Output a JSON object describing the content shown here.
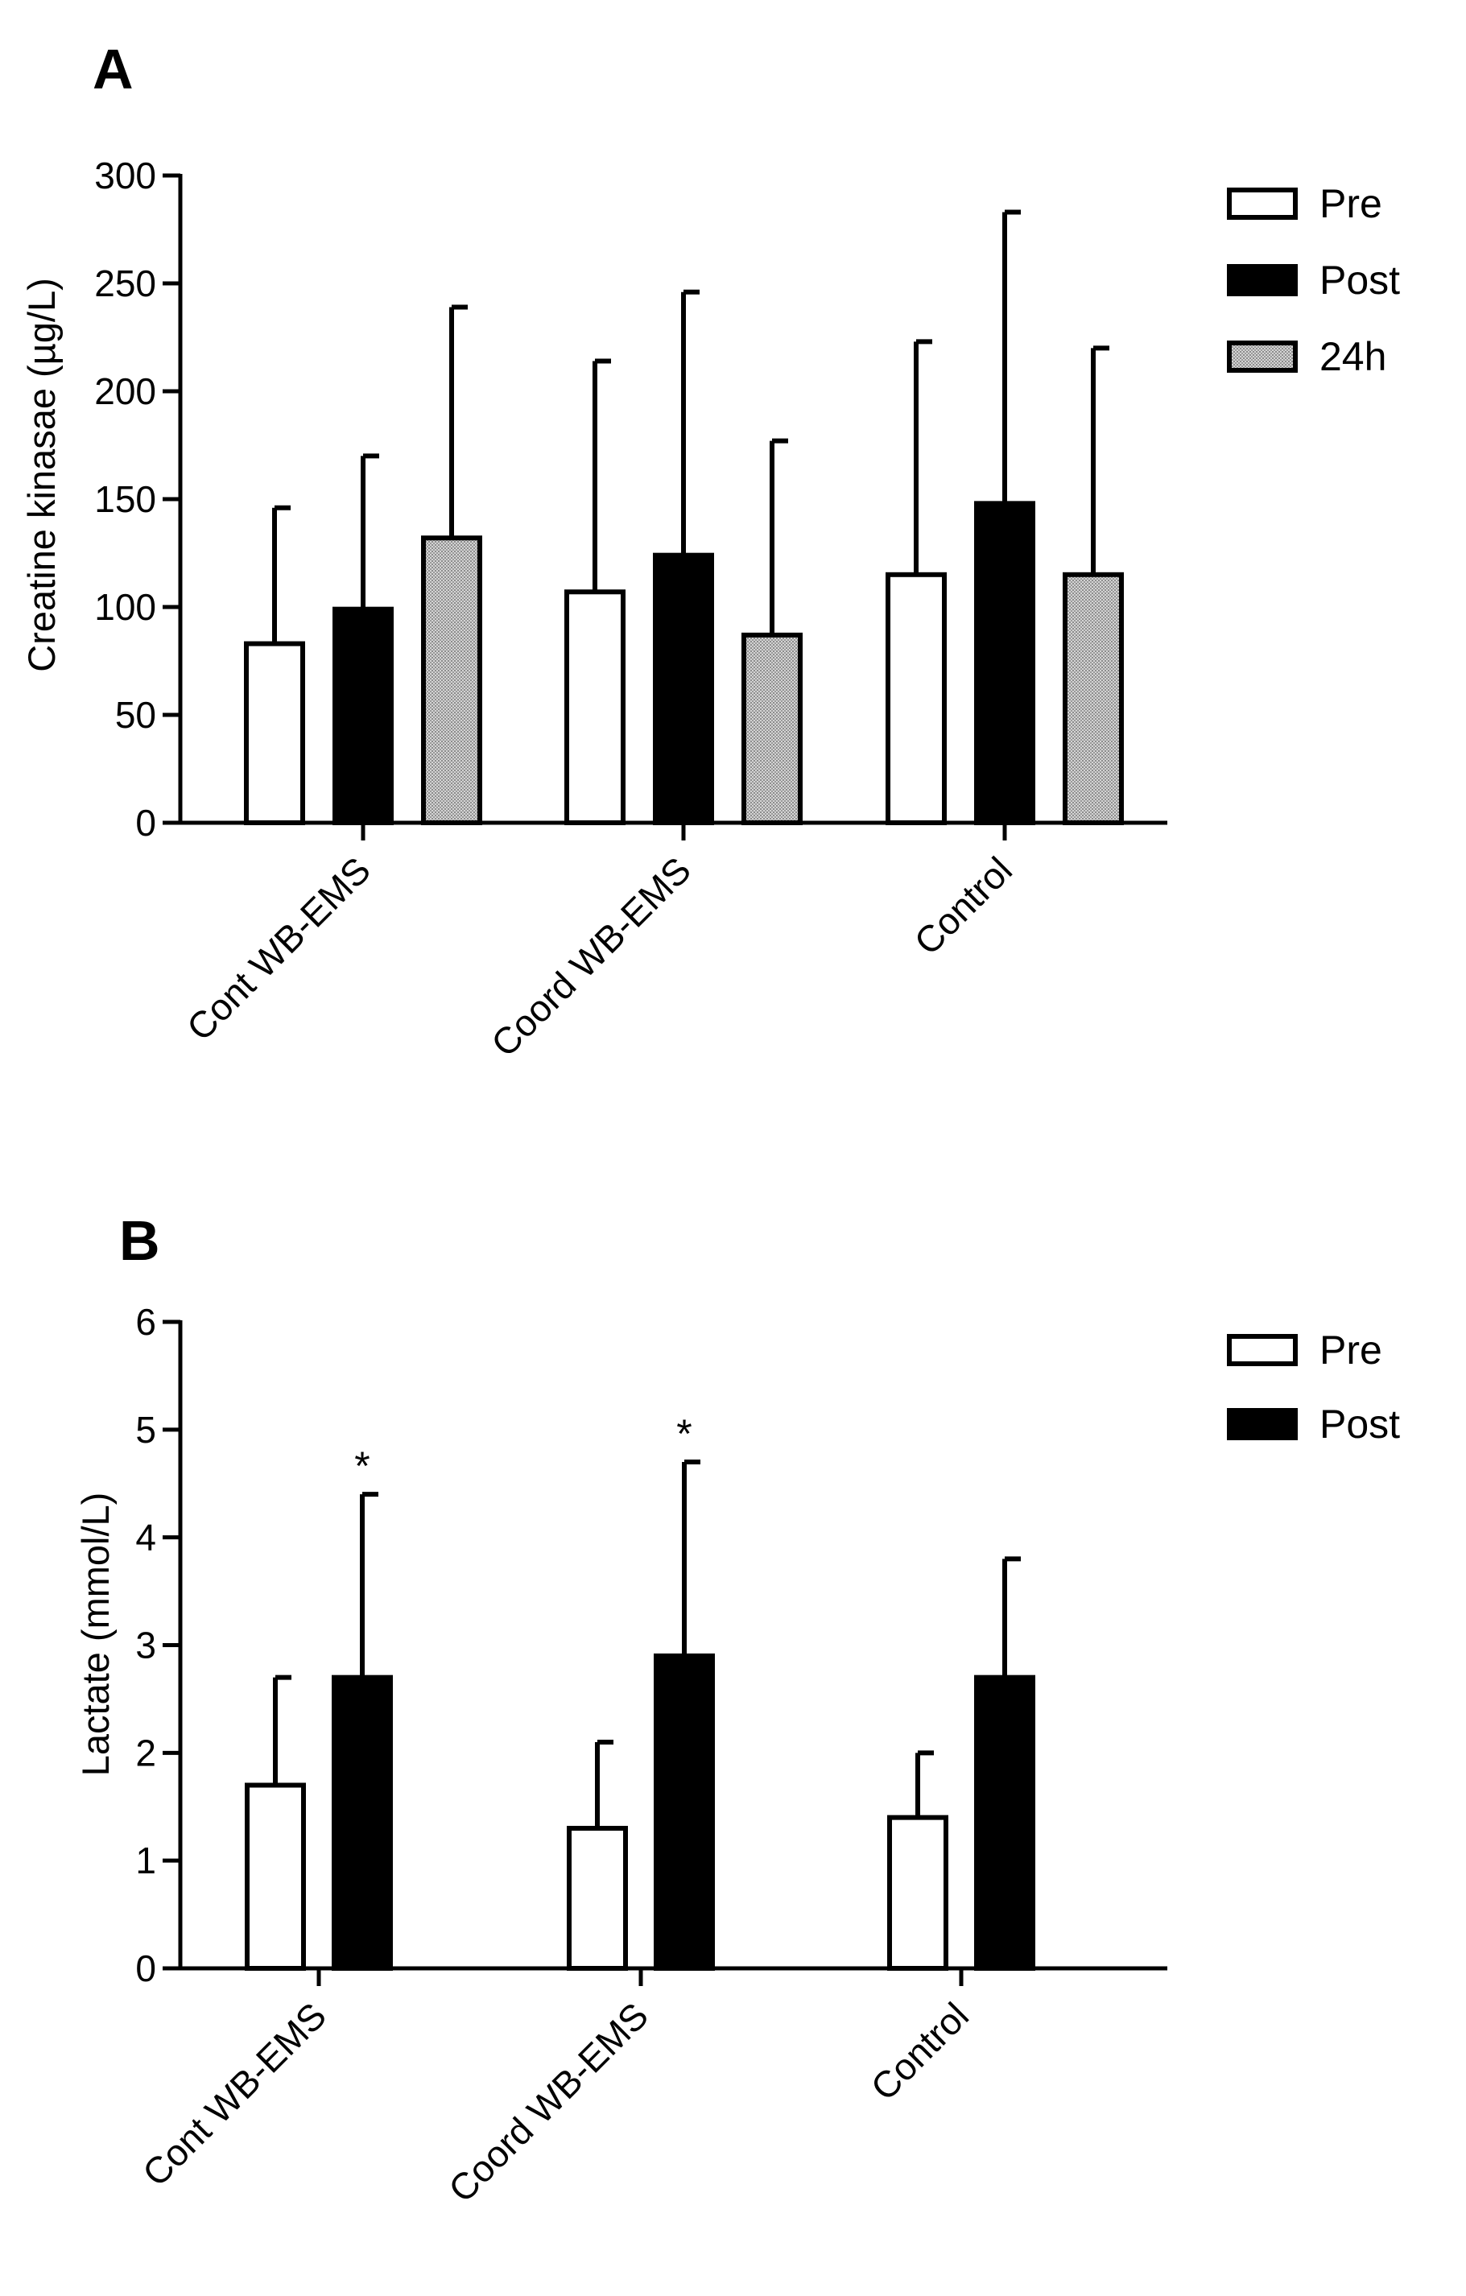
{
  "chart_data": [
    {
      "panel_label": "A",
      "type": "bar",
      "categories": [
        "Cont WB-EMS",
        "Coord WB-EMS",
        "Control"
      ],
      "ylabel": "Creatine kinasae (µg/L)",
      "xlabel": "",
      "ylim": [
        0,
        300
      ],
      "yticks": [
        0,
        50,
        100,
        150,
        200,
        250,
        300
      ],
      "legend_position": "top-right",
      "series": [
        {
          "name": "Pre",
          "color": "#ffffff",
          "values": [
            83,
            107,
            115
          ],
          "error_upper": [
            146,
            214,
            223
          ]
        },
        {
          "name": "Post",
          "color": "#000000",
          "values": [
            99,
            124,
            148
          ],
          "error_upper": [
            170,
            246,
            283
          ]
        },
        {
          "name": "24h",
          "color": "#b4b4b4",
          "values": [
            132,
            87,
            115
          ],
          "error_upper": [
            239,
            177,
            220
          ]
        }
      ],
      "annotations": []
    },
    {
      "panel_label": "B",
      "type": "bar",
      "categories": [
        "Cont WB-EMS",
        "Coord WB-EMS",
        "Control"
      ],
      "ylabel": "Lactate (mmol/L)",
      "xlabel": "",
      "ylim": [
        0,
        6
      ],
      "yticks": [
        0,
        1,
        2,
        3,
        4,
        5,
        6
      ],
      "legend_position": "top-right",
      "series": [
        {
          "name": "Pre",
          "color": "#ffffff",
          "values": [
            1.7,
            1.3,
            1.4
          ],
          "error_upper": [
            2.7,
            2.1,
            2.0
          ]
        },
        {
          "name": "Post",
          "color": "#000000",
          "values": [
            2.7,
            2.9,
            2.7
          ],
          "error_upper": [
            4.4,
            4.7,
            3.8
          ]
        }
      ],
      "annotations": [
        {
          "text": "*",
          "category": "Cont WB-EMS",
          "series": "Post"
        },
        {
          "text": "*",
          "category": "Coord WB-EMS",
          "series": "Post"
        }
      ]
    }
  ]
}
